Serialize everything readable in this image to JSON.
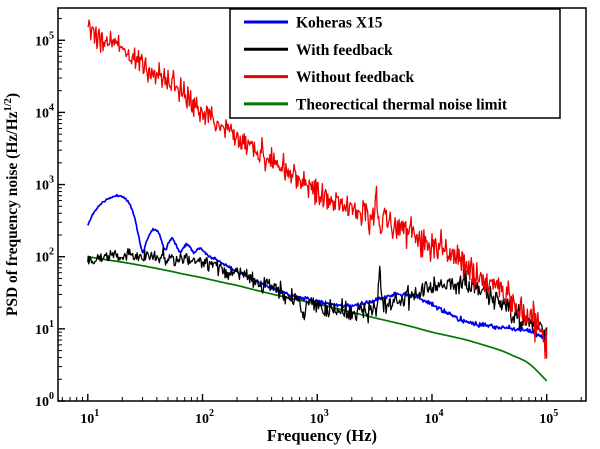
{
  "chart_data": {
    "type": "line",
    "title": "",
    "xlabel": "Frequency (Hz)",
    "ylabel": {
      "prefix": "PSD of frequency noise (Hz/Hz",
      "sup": "1/2",
      "suffix": ")"
    },
    "xscale": "log",
    "yscale": "log",
    "xlim": [
      5.5,
      220000
    ],
    "ylim": [
      1,
      280000
    ],
    "x_major_ticks": [
      10,
      100,
      1000,
      10000,
      100000
    ],
    "y_major_ticks": [
      1,
      10,
      100,
      1000,
      10000,
      100000
    ],
    "grid": false,
    "background": "#ffffff",
    "axis_color": "#000000",
    "legend": {
      "position": "top",
      "border_color": "#000000",
      "fill": "#ffffff",
      "order": [
        0,
        1,
        2,
        3
      ]
    },
    "draw_order": [
      3,
      0,
      1,
      2
    ],
    "series": [
      {
        "name": "Koheras X15",
        "color": "#0000ee",
        "width": 1.7,
        "noise": [
          0.006,
          0.02
        ],
        "seed": 11,
        "points": [
          [
            10,
            270
          ],
          [
            11,
            380
          ],
          [
            13,
            540
          ],
          [
            16,
            660
          ],
          [
            19,
            700
          ],
          [
            22,
            600
          ],
          [
            25,
            400
          ],
          [
            28,
            180
          ],
          [
            30,
            115
          ],
          [
            32,
            150
          ],
          [
            35,
            215
          ],
          [
            38,
            240
          ],
          [
            41,
            225
          ],
          [
            44,
            165
          ],
          [
            47,
            125
          ],
          [
            50,
            150
          ],
          [
            53,
            180
          ],
          [
            56,
            170
          ],
          [
            60,
            135
          ],
          [
            64,
            115
          ],
          [
            68,
            135
          ],
          [
            73,
            150
          ],
          [
            78,
            135
          ],
          [
            84,
            115
          ],
          [
            90,
            125
          ],
          [
            97,
            130
          ],
          [
            105,
            115
          ],
          [
            115,
            100
          ],
          [
            130,
            92
          ],
          [
            150,
            80
          ],
          [
            175,
            70
          ],
          [
            200,
            62
          ],
          [
            250,
            52
          ],
          [
            300,
            45
          ],
          [
            400,
            37
          ],
          [
            500,
            32
          ],
          [
            650,
            28
          ],
          [
            800,
            26
          ],
          [
            1000,
            24
          ],
          [
            1300,
            22
          ],
          [
            1700,
            21
          ],
          [
            2200,
            21
          ],
          [
            3000,
            24
          ],
          [
            4000,
            28
          ],
          [
            5000,
            30
          ],
          [
            6500,
            29
          ],
          [
            8000,
            26
          ],
          [
            10000,
            22
          ],
          [
            13000,
            17
          ],
          [
            17000,
            14
          ],
          [
            22000,
            12
          ],
          [
            30000,
            11
          ],
          [
            40000,
            10.5
          ],
          [
            55000,
            10
          ],
          [
            70000,
            9.5
          ],
          [
            85000,
            8
          ],
          [
            100000,
            6.5
          ]
        ]
      },
      {
        "name": "With feedback",
        "color": "#000000",
        "width": 1.3,
        "noise": [
          0.045,
          0.075
        ],
        "seed": 22,
        "points": [
          [
            10,
            95
          ],
          [
            13,
            100
          ],
          [
            16,
            103
          ],
          [
            20,
            105
          ],
          [
            25,
            103
          ],
          [
            30,
            100
          ],
          [
            40,
            97
          ],
          [
            50,
            95
          ],
          [
            65,
            92
          ],
          [
            80,
            88
          ],
          [
            100,
            83
          ],
          [
            130,
            73
          ],
          [
            160,
            65
          ],
          [
            200,
            57
          ],
          [
            250,
            50
          ],
          [
            300,
            44
          ],
          [
            400,
            37
          ],
          [
            500,
            32
          ],
          [
            600,
            28
          ],
          [
            700,
            25
          ],
          [
            760,
            14
          ],
          [
            820,
            24
          ],
          [
            900,
            22
          ],
          [
            1000,
            20
          ],
          [
            1200,
            19
          ],
          [
            1500,
            18
          ],
          [
            1800,
            17
          ],
          [
            2200,
            17
          ],
          [
            2600,
            18
          ],
          [
            3000,
            19
          ],
          [
            3300,
            20
          ],
          [
            3500,
            65
          ],
          [
            3700,
            21
          ],
          [
            4200,
            22
          ],
          [
            5000,
            24
          ],
          [
            6000,
            27
          ],
          [
            7000,
            30
          ],
          [
            8500,
            33
          ],
          [
            10000,
            36
          ],
          [
            12000,
            39
          ],
          [
            15000,
            42
          ],
          [
            18000,
            43
          ],
          [
            22000,
            41
          ],
          [
            26000,
            36
          ],
          [
            30000,
            31
          ],
          [
            36000,
            26
          ],
          [
            43000,
            21
          ],
          [
            52000,
            17
          ],
          [
            65000,
            13
          ],
          [
            80000,
            10
          ],
          [
            100000,
            8
          ]
        ]
      },
      {
        "name": "Without feedback",
        "color": "#ee0000",
        "width": 1.3,
        "noise": [
          0.075,
          0.12
        ],
        "seed": 33,
        "points": [
          [
            10,
            155000
          ],
          [
            11,
            125000
          ],
          [
            12,
            100000
          ],
          [
            14,
            88000
          ],
          [
            16,
            100000
          ],
          [
            18,
            95000
          ],
          [
            20,
            78000
          ],
          [
            23,
            60000
          ],
          [
            26,
            52000
          ],
          [
            30,
            45000
          ],
          [
            35,
            37000
          ],
          [
            40,
            31000
          ],
          [
            45,
            27000
          ],
          [
            50,
            24000
          ],
          [
            55,
            27000
          ],
          [
            60,
            21000
          ],
          [
            70,
            16500
          ],
          [
            80,
            14000
          ],
          [
            90,
            12000
          ],
          [
            100,
            10500
          ],
          [
            120,
            8200
          ],
          [
            150,
            6200
          ],
          [
            180,
            5100
          ],
          [
            220,
            4100
          ],
          [
            270,
            3300
          ],
          [
            330,
            2600
          ],
          [
            400,
            2100
          ],
          [
            500,
            1650
          ],
          [
            600,
            1350
          ],
          [
            700,
            1150
          ],
          [
            850,
            950
          ],
          [
            1000,
            800
          ],
          [
            1200,
            680
          ],
          [
            1500,
            560
          ],
          [
            1800,
            500
          ],
          [
            2200,
            440
          ],
          [
            2700,
            400
          ],
          [
            3100,
            380
          ],
          [
            3250,
            640
          ],
          [
            3400,
            370
          ],
          [
            4000,
            310
          ],
          [
            5000,
            265
          ],
          [
            6000,
            230
          ],
          [
            7000,
            205
          ],
          [
            8500,
            175
          ],
          [
            10000,
            150
          ],
          [
            12000,
            125
          ],
          [
            15000,
            100
          ],
          [
            18000,
            82
          ],
          [
            22000,
            66
          ],
          [
            27000,
            52
          ],
          [
            33000,
            41
          ],
          [
            40000,
            32
          ],
          [
            50000,
            24
          ],
          [
            60000,
            18
          ],
          [
            72000,
            13.5
          ],
          [
            85000,
            10
          ],
          [
            100000,
            7.5
          ]
        ]
      },
      {
        "name": "Theorectical thermal noise limit",
        "color": "#007700",
        "width": 1.7,
        "noise": [
          0,
          0
        ],
        "seed": 44,
        "points": [
          [
            10,
            100
          ],
          [
            15,
            90
          ],
          [
            20,
            84
          ],
          [
            30,
            75
          ],
          [
            50,
            64
          ],
          [
            70,
            57
          ],
          [
            100,
            51
          ],
          [
            150,
            44
          ],
          [
            200,
            40
          ],
          [
            300,
            34
          ],
          [
            500,
            28
          ],
          [
            700,
            25
          ],
          [
            1000,
            22
          ],
          [
            1500,
            19
          ],
          [
            2000,
            17
          ],
          [
            3000,
            14.5
          ],
          [
            5000,
            12
          ],
          [
            7000,
            10.5
          ],
          [
            10000,
            9
          ],
          [
            15000,
            7.8
          ],
          [
            20000,
            7
          ],
          [
            30000,
            5.8
          ],
          [
            40000,
            5
          ],
          [
            50000,
            4.3
          ],
          [
            70000,
            3.3
          ],
          [
            100000,
            1.9
          ]
        ]
      }
    ]
  }
}
